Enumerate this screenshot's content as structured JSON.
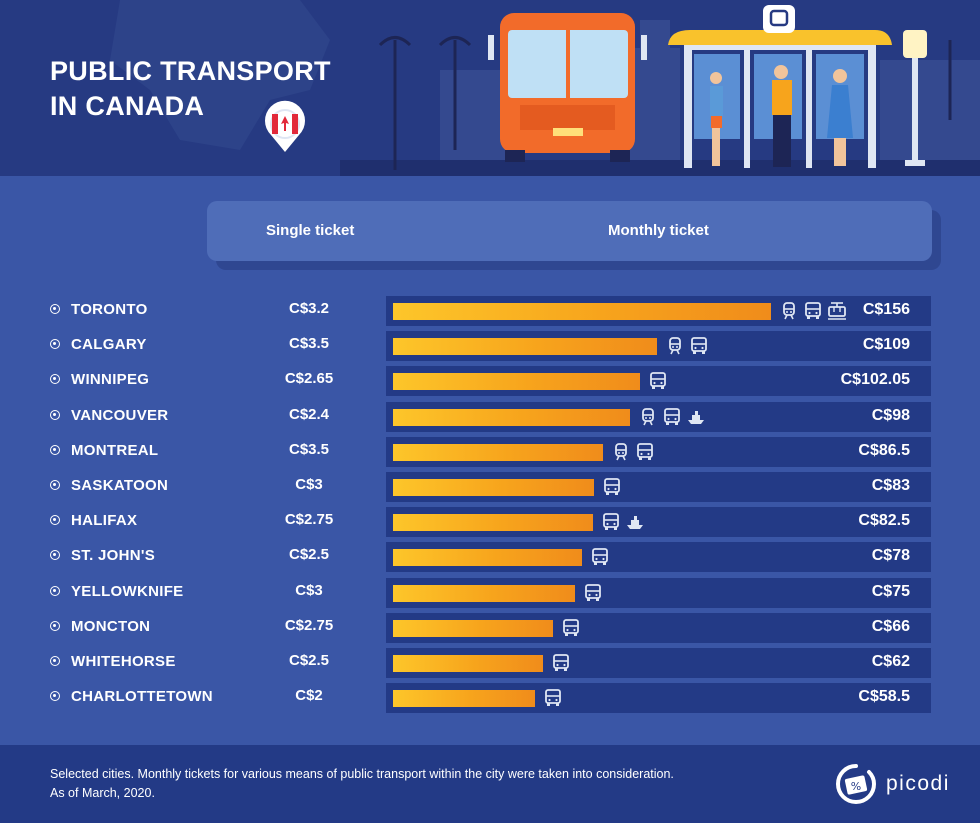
{
  "title_lines": [
    "PUBLIC TRANSPORT",
    "IN CANADA"
  ],
  "columns": {
    "single": "Single ticket",
    "monthly": "Monthly ticket"
  },
  "footer": {
    "note_line1": "Selected cities. Monthly tickets for various means of public transport within the city were taken into consideration.",
    "note_line2": "As of March, 2020.",
    "brand": "picodi"
  },
  "colors": {
    "background": "#3a56a6",
    "header": "#263a82",
    "panel": "#233a86",
    "bar_start": "#fdc62a",
    "bar_end": "#f08c1b",
    "text": "#ffffff"
  },
  "chart_data": {
    "type": "bar",
    "orientation": "horizontal",
    "categories": [
      "TORONTO",
      "CALGARY",
      "WINNIPEG",
      "VANCOUVER",
      "MONTREAL",
      "SASKATOON",
      "HALIFAX",
      "ST. JOHN'S",
      "YELLOWKNIFE",
      "MONCTON",
      "WHITEHORSE",
      "CHARLOTTETOWN"
    ],
    "series": [
      {
        "name": "Monthly ticket",
        "values": [
          156,
          109,
          102.05,
          98,
          86.5,
          83,
          82.5,
          78,
          75,
          66,
          62,
          58.5
        ]
      },
      {
        "name": "Single ticket",
        "values": [
          3.2,
          3.5,
          2.65,
          2.4,
          3.5,
          3,
          2.75,
          2.5,
          3,
          2.75,
          2.5,
          2
        ]
      }
    ],
    "monthly_labels": [
      "C$156",
      "C$109",
      "C$102.05",
      "C$98",
      "C$86.5",
      "C$83",
      "C$82.5",
      "C$78",
      "C$75",
      "C$66",
      "C$62",
      "C$58.5"
    ],
    "single_labels": [
      "C$3.2",
      "C$3.5",
      "C$2.65",
      "C$2.4",
      "C$3.5",
      "C$3",
      "C$2.75",
      "C$2.5",
      "C$3",
      "C$2.75",
      "C$2.5",
      "C$2"
    ],
    "transport_icons": [
      [
        "train-icon",
        "bus-icon",
        "tram-icon"
      ],
      [
        "train-icon",
        "bus-icon"
      ],
      [
        "bus-icon"
      ],
      [
        "train-icon",
        "bus-icon",
        "ferry-icon"
      ],
      [
        "train-icon",
        "bus-icon"
      ],
      [
        "bus-icon"
      ],
      [
        "bus-icon",
        "ferry-icon"
      ],
      [
        "bus-icon"
      ],
      [
        "bus-icon"
      ],
      [
        "bus-icon"
      ],
      [
        "bus-icon"
      ],
      [
        "bus-icon"
      ]
    ],
    "xlim": [
      0,
      156
    ]
  }
}
